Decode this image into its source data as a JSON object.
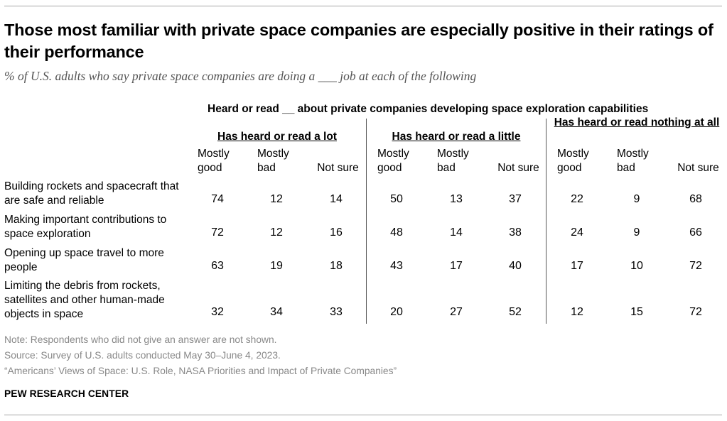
{
  "title": "Those most familiar with private space companies are especially positive in their ratings of their performance",
  "subtitle": "% of U.S. adults who say private space companies are doing a ___ job at each of the following",
  "chart_data": {
    "type": "table",
    "super_header": "Heard or read __ about private companies developing space exploration capabilities",
    "groups": [
      {
        "label": "Has heard or read a lot",
        "columns": [
          "Mostly good",
          "Mostly bad",
          "Not sure"
        ]
      },
      {
        "label": "Has heard or read a little",
        "columns": [
          "Mostly good",
          "Mostly bad",
          "Not sure"
        ]
      },
      {
        "label": "Has heard or read nothing at all",
        "columns": [
          "Mostly good",
          "Mostly bad",
          "Not sure"
        ]
      }
    ],
    "rows": [
      {
        "label": "Building rockets and spacecraft that are safe and reliable",
        "values": [
          74,
          12,
          14,
          50,
          13,
          37,
          22,
          9,
          68
        ]
      },
      {
        "label": "Making important contributions to space exploration",
        "values": [
          72,
          12,
          16,
          48,
          14,
          38,
          24,
          9,
          66
        ]
      },
      {
        "label": "Opening up space travel to more people",
        "values": [
          63,
          19,
          18,
          43,
          17,
          40,
          17,
          10,
          72
        ]
      },
      {
        "label": "Limiting the debris from rockets, satellites and other human-made objects in space",
        "values": [
          32,
          34,
          33,
          20,
          27,
          52,
          12,
          15,
          72
        ]
      }
    ]
  },
  "notes": {
    "note": "Note: Respondents who did not give an answer are not shown.",
    "source": "Source: Survey of U.S. adults conducted May 30–June 4, 2023.",
    "report": "“Americans’ Views of Space: U.S. Role, NASA Priorities and Impact of Private Companies”"
  },
  "brand": "PEW RESEARCH CENTER"
}
